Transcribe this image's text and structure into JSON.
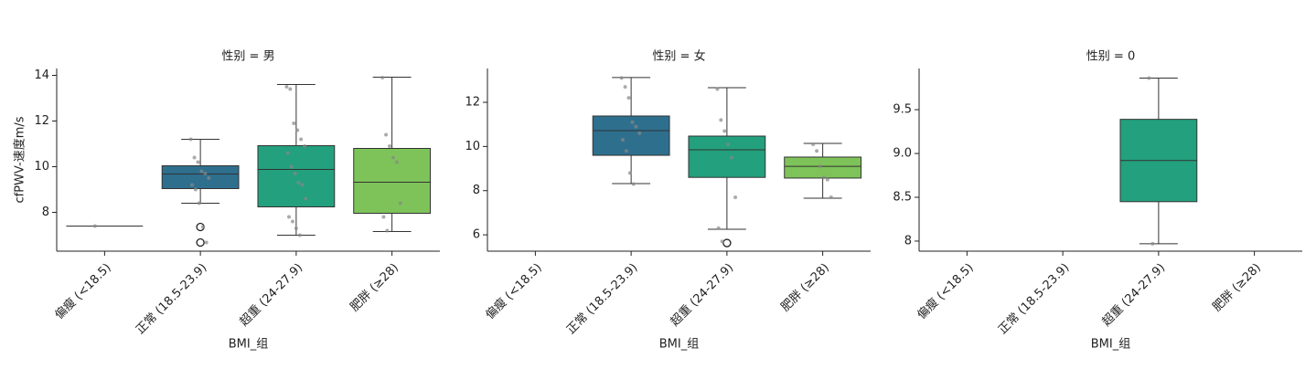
{
  "chart_data": [
    {
      "type": "box",
      "title": "性别 = 男",
      "xlabel": "BMI_组",
      "ylabel": "cfPWV-速度m/s",
      "categories": [
        "偏瘦 (<18.5)",
        "正常 (18.5-23.9)",
        "超重 (24-27.9)",
        "肥胖 (≥28)"
      ],
      "colors": [
        "#433e85",
        "#2e6f8e",
        "#23a07d",
        "#7ec359"
      ],
      "ylim": [
        6.3,
        14.3
      ],
      "yticks": [
        8,
        10,
        12,
        14
      ],
      "boxes": [
        {
          "min": 7.4,
          "q1": 7.4,
          "median": 7.4,
          "q3": 7.4,
          "max": 7.4,
          "outliers": [],
          "points": [
            7.4
          ]
        },
        {
          "min": 8.4,
          "q1": 9.04,
          "median": 9.68,
          "q3": 10.04,
          "max": 11.2,
          "outliers": [
            7.36,
            6.68
          ],
          "points": [
            11.2,
            10.4,
            10.2,
            9.8,
            9.7,
            9.5,
            9.2,
            9.0,
            8.4,
            7.36,
            6.68
          ]
        },
        {
          "min": 7.0,
          "q1": 8.24,
          "median": 9.88,
          "q3": 10.92,
          "max": 13.6,
          "outliers": [],
          "points": [
            13.5,
            13.4,
            11.9,
            11.6,
            11.2,
            10.9,
            10.6,
            10.0,
            9.7,
            9.3,
            9.2,
            8.6,
            7.8,
            7.6,
            7.3,
            7.0
          ]
        },
        {
          "min": 7.16,
          "q1": 7.96,
          "median": 9.32,
          "q3": 10.8,
          "max": 13.92,
          "outliers": [],
          "points": [
            13.9,
            11.4,
            10.9,
            10.4,
            10.2,
            8.4,
            7.8,
            7.2
          ]
        }
      ]
    },
    {
      "type": "box",
      "title": "性别 = 女",
      "xlabel": "BMI_组",
      "categories": [
        "偏瘦 (<18.5)",
        "正常 (18.5-23.9)",
        "超重 (24-27.9)",
        "肥胖 (≥28)"
      ],
      "colors": [
        "#433e85",
        "#2e6f8e",
        "#23a07d",
        "#7ec359"
      ],
      "ylim": [
        5.26,
        13.53
      ],
      "yticks": [
        6,
        8,
        10,
        12
      ],
      "boxes": [
        null,
        {
          "min": 8.32,
          "q1": 9.6,
          "median": 10.72,
          "q3": 11.38,
          "max": 13.12,
          "outliers": [],
          "points": [
            13.1,
            12.7,
            12.2,
            11.1,
            10.9,
            10.6,
            10.3,
            9.8,
            8.8,
            8.3
          ]
        },
        {
          "min": 6.25,
          "q1": 8.6,
          "median": 9.85,
          "q3": 10.47,
          "max": 12.66,
          "outliers": [
            5.63
          ],
          "points": [
            12.6,
            11.2,
            10.7,
            10.1,
            9.5,
            7.7,
            6.3,
            5.7
          ]
        },
        {
          "min": 7.66,
          "q1": 8.57,
          "median": 9.1,
          "q3": 9.52,
          "max": 10.14,
          "outliers": [],
          "points": [
            10.1,
            9.8,
            9.1,
            8.6,
            8.5,
            7.7
          ]
        }
      ]
    },
    {
      "type": "box",
      "title": "性别 = 0",
      "xlabel": "BMI_组",
      "categories": [
        "偏瘦 (<18.5)",
        "正常 (18.5-23.9)",
        "超重 (24-27.9)",
        "肥胖 (≥28)"
      ],
      "colors": [
        "#433e85",
        "#2e6f8e",
        "#23a07d",
        "#7ec359"
      ],
      "ylim": [
        7.885,
        9.97
      ],
      "yticks": [
        8,
        {
          "value": 8.5,
          "label": "8.5"
        },
        {
          "value": 9,
          "label": "9.0"
        },
        9.5
      ],
      "boxes": [
        null,
        null,
        {
          "min": 7.97,
          "q1": 8.45,
          "median": 8.92,
          "q3": 9.39,
          "max": 9.86,
          "outliers": [],
          "points": [
            9.86,
            7.97
          ]
        },
        null
      ]
    }
  ]
}
